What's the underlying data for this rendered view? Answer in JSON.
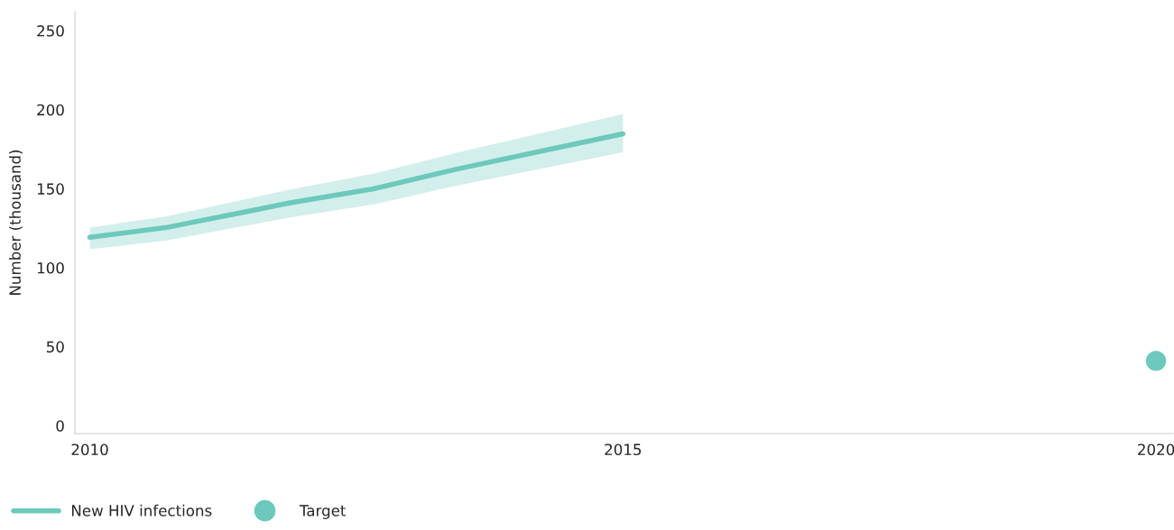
{
  "chart_data": {
    "type": "line",
    "ylabel": "Number (thousand)",
    "xlim": [
      2009.86,
      2020.16
    ],
    "xticks": [
      2010,
      2015,
      2020
    ],
    "ylim": [
      -5,
      262
    ],
    "yticks": [
      0,
      50,
      100,
      150,
      200,
      250
    ],
    "grid": false,
    "legend": "bottom left",
    "series": [
      {
        "name": "New HIV infections",
        "color": "#6cc9bc",
        "marker": "none",
        "line_style": "solid",
        "x": [
          2010,
          2010.71,
          2011.88,
          2012.66,
          2013.45,
          2014.23,
          2015
        ],
        "values": [
          119.2,
          125.3,
          141.0,
          149.9,
          162.5,
          173.7,
          184.7
        ],
        "lower": [
          111.6,
          117.1,
          131.8,
          140.1,
          152.1,
          162.6,
          173.0
        ],
        "upper": [
          125.3,
          132.3,
          149.5,
          159.4,
          172.9,
          185.1,
          197.3
        ]
      },
      {
        "name": "Target",
        "type": "scatter",
        "color": "#6cc9bc",
        "marker": "circle",
        "x": [
          2020
        ],
        "values": [
          41
        ]
      }
    ]
  }
}
